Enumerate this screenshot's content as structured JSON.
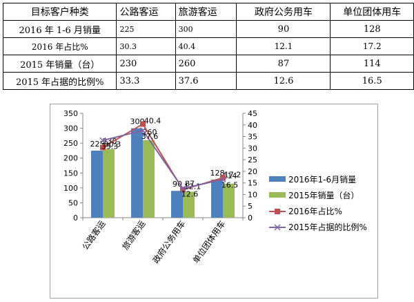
{
  "table": {
    "header": [
      "目标客户种类",
      "公路客运",
      "旅游客运",
      "政府公务用车",
      "单位团体用车"
    ],
    "rows": [
      [
        "2016 年 1-6 月销量",
        "225",
        "300",
        "90",
        "128"
      ],
      [
        "2016 年占比%",
        "30.3",
        "40.4",
        "12.1",
        "17.2"
      ],
      [
        "2015 年销量（台）",
        "230",
        "260",
        "87",
        "114"
      ],
      [
        "2015 年占据的比例%",
        "33.3",
        "37.6",
        "12.6",
        "16.5"
      ]
    ]
  },
  "chart_data": {
    "type": "bar",
    "categories": [
      "公路客运",
      "旅游客运",
      "政府公务用车",
      "单位团体用车"
    ],
    "series": [
      {
        "name": "2016年1-6月销量",
        "type": "bar",
        "axis": "left",
        "values": [
          225,
          300,
          90,
          128
        ],
        "color": "#4f81bd"
      },
      {
        "name": "2015年销量（台）",
        "type": "bar",
        "axis": "left",
        "values": [
          230,
          260,
          87,
          114
        ],
        "color": "#9bbb59"
      },
      {
        "name": "2016年占比%",
        "type": "line",
        "axis": "right",
        "values": [
          30.3,
          40.4,
          12.1,
          17.2
        ],
        "color": "#c0504d",
        "marker": "square"
      },
      {
        "name": "2015年占据的比例%",
        "type": "line",
        "axis": "right",
        "values": [
          33.3,
          37.6,
          12.6,
          16.5
        ],
        "color": "#8064a2",
        "marker": "x"
      }
    ],
    "ylim_left": [
      0,
      350
    ],
    "yticks_left": [
      0,
      50,
      100,
      150,
      200,
      250,
      300,
      350
    ],
    "ylim_right": [
      0,
      45
    ],
    "yticks_right": [
      0,
      5,
      10,
      15,
      20,
      25,
      30,
      35,
      40,
      45
    ],
    "legend": "right",
    "grid": false
  }
}
